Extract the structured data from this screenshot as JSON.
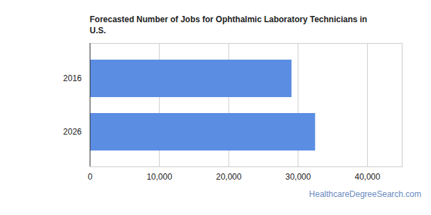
{
  "chart_data": {
    "type": "bar",
    "title": "Forecasted Number of Jobs for Ophthalmic Laboratory Technicians in U.S.",
    "caption": "HealthcareDegreeSearch.com",
    "orientation": "horizontal",
    "categories": [
      "2016",
      "2026"
    ],
    "values": [
      29100,
      32500
    ],
    "color": "#5b8de3",
    "xlim": [
      0,
      45000
    ],
    "xticks": [
      0,
      {
        "value": 10000,
        "label": "10,000"
      },
      {
        "value": 20000,
        "label": "20,000"
      },
      {
        "value": 30000,
        "label": "30,000"
      },
      {
        "value": 40000,
        "label": "40,000"
      }
    ],
    "grid": true
  }
}
